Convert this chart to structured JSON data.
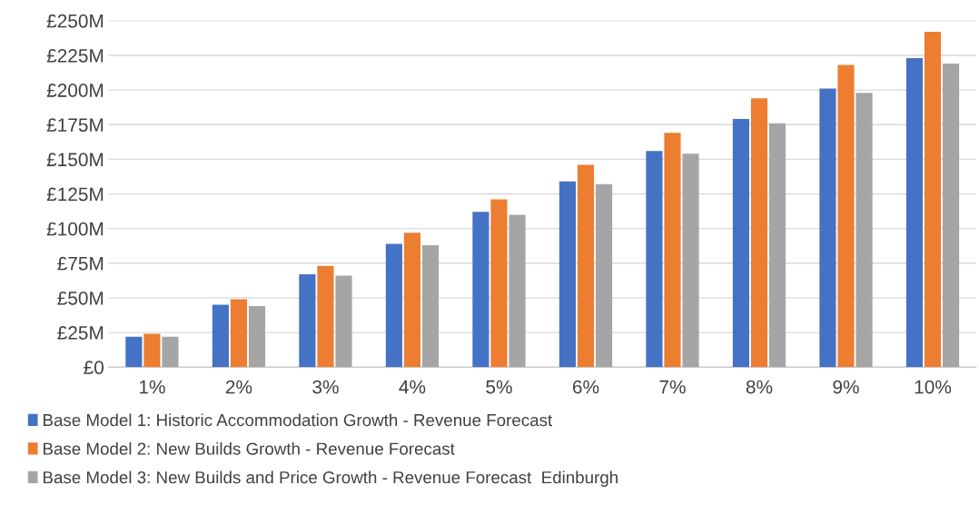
{
  "chart_data": {
    "type": "bar",
    "categories": [
      "1%",
      "2%",
      "3%",
      "4%",
      "5%",
      "6%",
      "7%",
      "8%",
      "9%",
      "10%"
    ],
    "series": [
      {
        "name": "Base Model 1: Historic Accommodation Growth - Revenue Forecast",
        "color": "#4472c4",
        "values": [
          22,
          45,
          67,
          89,
          112,
          134,
          156,
          179,
          201,
          223
        ]
      },
      {
        "name": "Base Model 2: New Builds Growth - Revenue Forecast",
        "color": "#ed7d31",
        "values": [
          24,
          49,
          73,
          97,
          121,
          146,
          169,
          194,
          218,
          242
        ]
      },
      {
        "name": "Base Model 3: New Builds and Price Growth - Revenue Forecast  Edinburgh",
        "color": "#a5a5a5",
        "values": [
          22,
          44,
          66,
          88,
          110,
          132,
          154,
          176,
          198,
          219
        ]
      }
    ],
    "ylim": [
      0,
      250
    ],
    "yticks": [
      {
        "value": 0,
        "label": "£0"
      },
      {
        "value": 25,
        "label": "£25M"
      },
      {
        "value": 50,
        "label": "£50M"
      },
      {
        "value": 75,
        "label": "£75M"
      },
      {
        "value": 100,
        "label": "£100M"
      },
      {
        "value": 125,
        "label": "£125M"
      },
      {
        "value": 150,
        "label": "£150M"
      },
      {
        "value": 175,
        "label": "£175M"
      },
      {
        "value": 200,
        "label": "£200M"
      },
      {
        "value": 225,
        "label": "£225M"
      },
      {
        "value": 250,
        "label": "£250M"
      }
    ],
    "grid": "y",
    "legend": "bottom"
  }
}
